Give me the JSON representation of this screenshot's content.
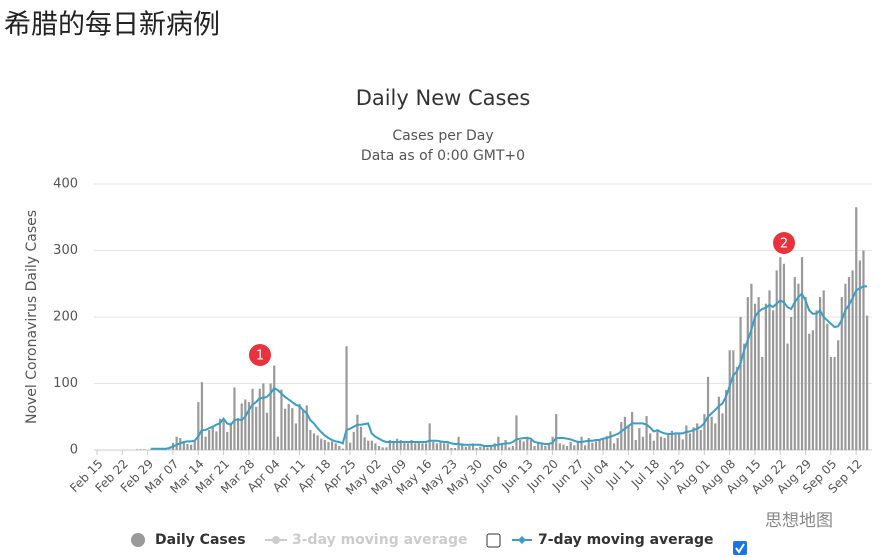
{
  "page_title": "希腊的每日新病例",
  "watermark": "思想地图",
  "chart_data": {
    "type": "bar",
    "title": "Daily New Cases",
    "subtitle": [
      "Cases per Day",
      "Data as of 0:00 GMT+0"
    ],
    "y_label": "Novel Coronavirus Daily Cases",
    "categories": [
      "Feb 15",
      null,
      null,
      null,
      null,
      null,
      null,
      "Feb 22",
      null,
      null,
      null,
      null,
      null,
      null,
      "Feb 29",
      null,
      null,
      null,
      null,
      null,
      null,
      "Mar 07",
      null,
      null,
      null,
      null,
      null,
      null,
      "Mar 14",
      null,
      null,
      null,
      null,
      null,
      null,
      "Mar 21",
      null,
      null,
      null,
      null,
      null,
      null,
      "Mar 28",
      null,
      null,
      null,
      null,
      null,
      null,
      "Apr 04",
      null,
      null,
      null,
      null,
      null,
      null,
      "Apr 11",
      null,
      null,
      null,
      null,
      null,
      null,
      "Apr 18",
      null,
      null,
      null,
      null,
      null,
      null,
      "Apr 25",
      null,
      null,
      null,
      null,
      null,
      null,
      "May 02",
      null,
      null,
      null,
      null,
      null,
      null,
      "May 09",
      null,
      null,
      null,
      null,
      null,
      null,
      "May 16",
      null,
      null,
      null,
      null,
      null,
      null,
      "May 23",
      null,
      null,
      null,
      null,
      null,
      null,
      "May 30",
      null,
      null,
      null,
      null,
      null,
      null,
      "Jun 06",
      null,
      null,
      null,
      null,
      null,
      null,
      "Jun 13",
      null,
      null,
      null,
      null,
      null,
      null,
      "Jun 20",
      null,
      null,
      null,
      null,
      null,
      null,
      "Jun 27",
      null,
      null,
      null,
      null,
      null,
      null,
      "Jul 04",
      null,
      null,
      null,
      null,
      null,
      null,
      "Jul 11",
      null,
      null,
      null,
      null,
      null,
      null,
      "Jul 18",
      null,
      null,
      null,
      null,
      null,
      null,
      "Jul 25",
      null,
      null,
      null,
      null,
      null,
      null,
      "Aug 01",
      null,
      null,
      null,
      null,
      null,
      null,
      "Aug 08",
      null,
      null,
      null,
      null,
      null,
      null,
      "Aug 15",
      null,
      null,
      null,
      null,
      null,
      null,
      "Aug 22",
      null,
      null,
      null,
      null,
      null,
      null,
      "Aug 29",
      null,
      null,
      null,
      null,
      null,
      null,
      "Sep 05",
      null,
      null,
      null,
      null,
      null,
      null,
      "Sep 12",
      null,
      null,
      null
    ],
    "series": [
      {
        "name": "Daily Cases",
        "type": "bar",
        "color": "#999999",
        "values": [
          0,
          0,
          0,
          0,
          0,
          0,
          0,
          0,
          0,
          0,
          0,
          1,
          1,
          1,
          0,
          2,
          0,
          0,
          2,
          2,
          1,
          11,
          20,
          18,
          11,
          9,
          8,
          15,
          72,
          102,
          20,
          30,
          35,
          28,
          47,
          44,
          27,
          41,
          94,
          48,
          70,
          76,
          72,
          92,
          65,
          92,
          100,
          56,
          100,
          127,
          20,
          91,
          62,
          69,
          63,
          40,
          69,
          60,
          67,
          30,
          25,
          22,
          17,
          15,
          12,
          13,
          10,
          6,
          2,
          156,
          11,
          27,
          53,
          35,
          19,
          14,
          14,
          10,
          6,
          4,
          4,
          15,
          12,
          17,
          15,
          13,
          10,
          15,
          10,
          12,
          10,
          10,
          40,
          12,
          10,
          12,
          10,
          10,
          3,
          3,
          20,
          10,
          5,
          6,
          10,
          3,
          5,
          5,
          4,
          5,
          10,
          20,
          10,
          15,
          4,
          6,
          52,
          15,
          13,
          20,
          15,
          6,
          10,
          9,
          6,
          10,
          20,
          54,
          10,
          8,
          6,
          12,
          7,
          14,
          20,
          7,
          18,
          11,
          13,
          16,
          18,
          21,
          28,
          10,
          18,
          42,
          50,
          37,
          57,
          15,
          33,
          20,
          51,
          25,
          14,
          28,
          20,
          18,
          25,
          29,
          26,
          26,
          16,
          37,
          25,
          34,
          40,
          30,
          54,
          110,
          50,
          40,
          80,
          55,
          90,
          150,
          150,
          125,
          200,
          160,
          230,
          250,
          220,
          230,
          140,
          220,
          240,
          210,
          270,
          290,
          280,
          160,
          200,
          260,
          250,
          290,
          230,
          175,
          180,
          210,
          230,
          240,
          190,
          140,
          140,
          165,
          230,
          250,
          260,
          270,
          365,
          285,
          300,
          202
        ]
      },
      {
        "name": "7-day moving average",
        "type": "line",
        "color": "#3a9ec6",
        "values": [
          null,
          null,
          null,
          null,
          null,
          null,
          null,
          null,
          null,
          null,
          null,
          null,
          null,
          null,
          null,
          2,
          2,
          2,
          2,
          2,
          3,
          5,
          8,
          10,
          12,
          13,
          13,
          14,
          20,
          30,
          30,
          33,
          35,
          38,
          40,
          47,
          40,
          38,
          45,
          46,
          45,
          50,
          60,
          68,
          72,
          78,
          78,
          80,
          85,
          93,
          90,
          85,
          80,
          76,
          72,
          68,
          66,
          60,
          55,
          45,
          40,
          33,
          27,
          22,
          18,
          15,
          13,
          12,
          10,
          30,
          32,
          35,
          38,
          38,
          39,
          40,
          25,
          20,
          17,
          14,
          12,
          12,
          12,
          12,
          12,
          12,
          12,
          12,
          12,
          12,
          12,
          12,
          14,
          14,
          14,
          13,
          12,
          12,
          10,
          9,
          9,
          8,
          8,
          8,
          8,
          8,
          8,
          6,
          6,
          6,
          7,
          8,
          9,
          10,
          10,
          12,
          16,
          17,
          18,
          18,
          17,
          12,
          11,
          10,
          9,
          9,
          11,
          18,
          18,
          18,
          17,
          16,
          14,
          12,
          12,
          13,
          14,
          14,
          15,
          15,
          17,
          18,
          20,
          22,
          24,
          28,
          32,
          36,
          40,
          40,
          40,
          40,
          38,
          34,
          28,
          30,
          27,
          25,
          24,
          24,
          25,
          25,
          25,
          27,
          28,
          30,
          32,
          35,
          40,
          50,
          55,
          60,
          66,
          70,
          80,
          96,
          112,
          118,
          130,
          150,
          165,
          180,
          200,
          208,
          212,
          214,
          218,
          215,
          220,
          225,
          222,
          215,
          212,
          222,
          230,
          235,
          225,
          210,
          205,
          205,
          210,
          200,
          195,
          190,
          185,
          186,
          195,
          210,
          218,
          228,
          240,
          243,
          246,
          246
        ]
      }
    ],
    "hidden_series": [
      {
        "name": "3-day moving average",
        "color": "#cccccc"
      }
    ],
    "ylim": [
      0,
      400
    ],
    "yticks": [
      0,
      100,
      200,
      300,
      400
    ],
    "grid": true,
    "annotations": [
      "1",
      "2"
    ]
  }
}
